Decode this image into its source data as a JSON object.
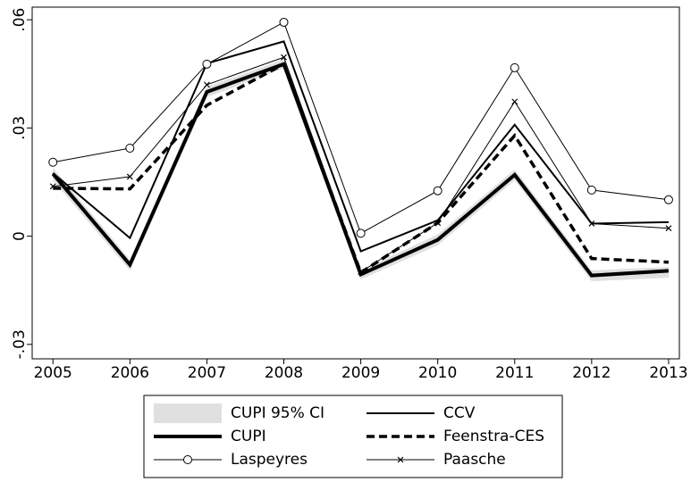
{
  "chart_data": {
    "type": "line",
    "x": [
      2005,
      2006,
      2007,
      2008,
      2009,
      2010,
      2011,
      2012,
      2013
    ],
    "xlim": [
      2004.73,
      2013.14
    ],
    "xticks": [
      2005,
      2006,
      2007,
      2008,
      2009,
      2010,
      2011,
      2012,
      2013
    ],
    "ylim": [
      -0.034,
      0.0635
    ],
    "yticks": [
      {
        "value": -0.03,
        "label": "-.03"
      },
      0,
      {
        "value": 0.03,
        "label": ".03"
      },
      {
        "value": 0.06,
        "label": ".06"
      }
    ],
    "series": [
      {
        "name": "CUPI 95% CI",
        "color": "#e0e0e0",
        "lower": [
          0.0155,
          -0.0095,
          0.0385,
          0.0465,
          -0.012,
          -0.0025,
          0.0155,
          -0.0125,
          -0.0115
        ],
        "upper": [
          0.019,
          -0.0065,
          0.0415,
          0.049,
          -0.0095,
          0.0005,
          0.0185,
          -0.0095,
          -0.0085
        ]
      },
      {
        "name": "CCV",
        "color": "#000000",
        "width": 2,
        "dash": "none",
        "values": [
          0.0175,
          -0.0005,
          0.0479,
          0.054,
          -0.0042,
          0.0044,
          0.0309,
          0.0035,
          0.0039
        ]
      },
      {
        "name": "CUPI",
        "color": "#000000",
        "width": 4,
        "dash": "none",
        "values": [
          0.0173,
          -0.0079,
          0.04,
          0.0477,
          -0.0106,
          -0.001,
          0.017,
          -0.0109,
          -0.0096
        ]
      },
      {
        "name": "Feenstra-CES",
        "color": "#000000",
        "width": 3.5,
        "dash": "9 5",
        "values": [
          0.0133,
          0.0131,
          0.0363,
          0.0477,
          -0.0101,
          0.0037,
          0.0279,
          -0.0062,
          -0.0072
        ]
      },
      {
        "name": "Laspeyres",
        "color": "#000000",
        "width": 1,
        "dash": "none",
        "marker": "circle",
        "values": [
          0.0205,
          0.0244,
          0.0477,
          0.0593,
          0.0008,
          0.0126,
          0.0467,
          0.0128,
          0.0101
        ]
      },
      {
        "name": "Paasche",
        "color": "#000000",
        "width": 1,
        "dash": "none",
        "marker": "x",
        "values": [
          0.0138,
          0.0165,
          0.042,
          0.0496,
          -0.0099,
          0.0037,
          0.0373,
          0.0035,
          0.0022
        ]
      }
    ]
  }
}
